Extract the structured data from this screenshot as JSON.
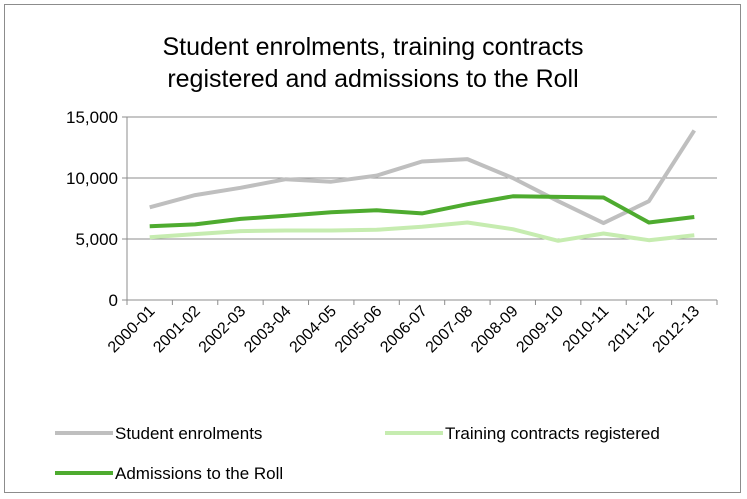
{
  "chart_data": {
    "type": "line",
    "title": "Student enrolments, training contracts registered and admissions to the Roll",
    "title_lines": [
      "Student enrolments, training contracts",
      "registered and admissions to the Roll"
    ],
    "categories": [
      "2000-01",
      "2001-02",
      "2002-03",
      "2003-04",
      "2004-05",
      "2005-06",
      "2006-07",
      "2007-08",
      "2008-09",
      "2009-10",
      "2010-11",
      "2011-12",
      "2012-13"
    ],
    "ylim": [
      0,
      15000
    ],
    "yticks": [
      0,
      5000,
      10000,
      15000
    ],
    "ytick_labels": [
      "0",
      "5,000",
      "10,000",
      "15,000"
    ],
    "grid": "horizontal",
    "legend_position": "bottom",
    "series": [
      {
        "name": "Student enrolments",
        "color": "#bfbfbf",
        "values": [
          7600,
          8600,
          9200,
          9900,
          9700,
          10200,
          11350,
          11550,
          10000,
          8100,
          6300,
          8100,
          13900
        ]
      },
      {
        "name": "Training contracts registered",
        "color": "#c6ecb0",
        "values": [
          5150,
          5400,
          5650,
          5700,
          5700,
          5750,
          6000,
          6350,
          5800,
          4850,
          5450,
          4900,
          5300
        ]
      },
      {
        "name": "Admissions to the Roll",
        "color": "#4eab2f",
        "values": [
          6050,
          6200,
          6650,
          6900,
          7200,
          7350,
          7100,
          7850,
          8500,
          8450,
          8400,
          6350,
          6800
        ]
      }
    ]
  }
}
